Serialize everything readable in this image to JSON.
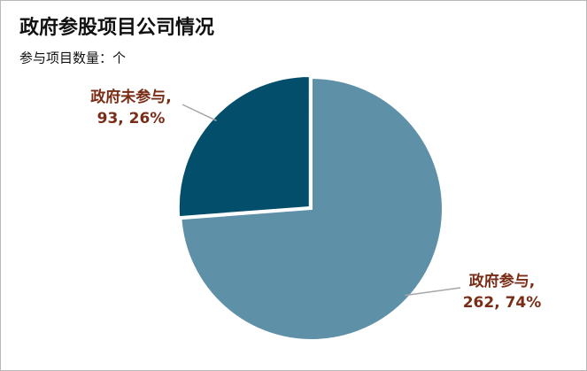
{
  "chart_data": {
    "type": "pie",
    "title": "政府参股项目公司情况",
    "subtitle": "参与项目数量：个",
    "categories": [
      "政府参与,",
      "政府未参与,"
    ],
    "values": [
      262,
      93
    ],
    "value_labels": [
      "262, 74%",
      "93, 26%"
    ],
    "colors": [
      "#5e91a8",
      "#034e6a"
    ]
  }
}
